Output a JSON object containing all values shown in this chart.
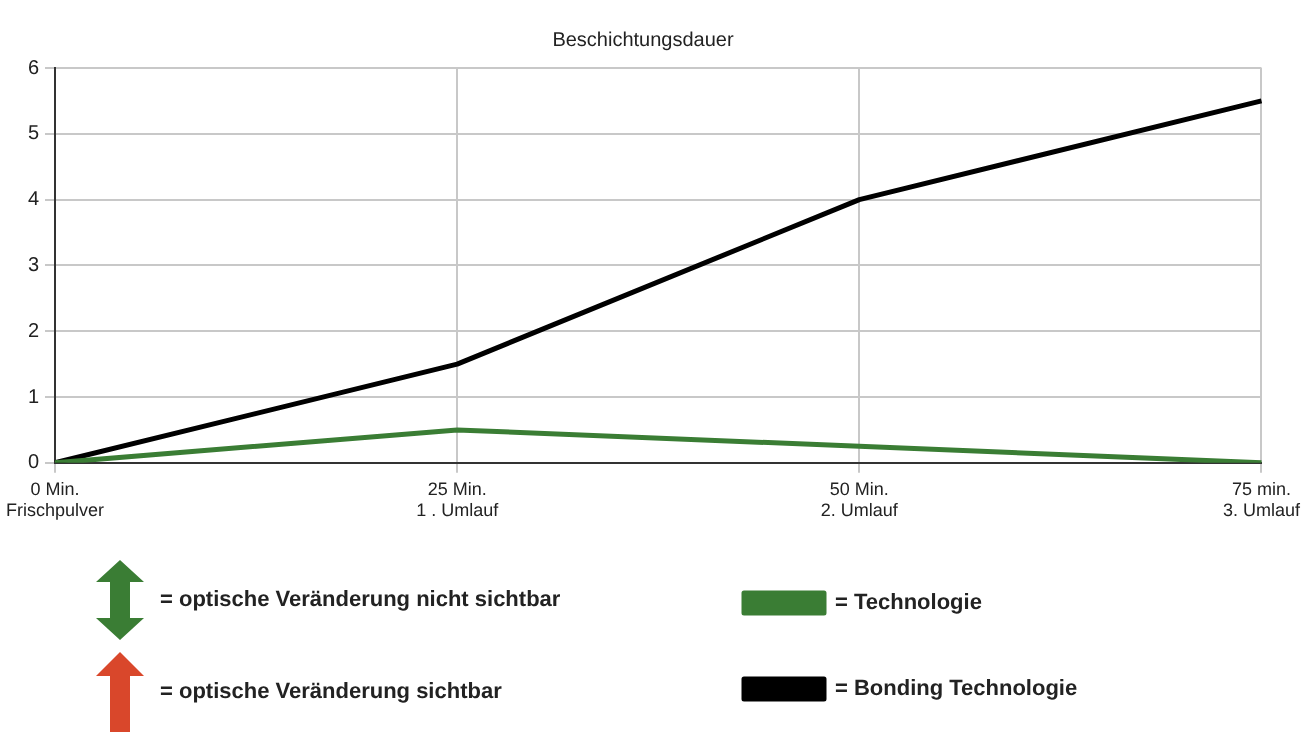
{
  "chart_data": {
    "type": "line",
    "title": "Beschichtungsdauer",
    "categories": [
      "0 Min.\nFrischpulver",
      "25 Min.\n1 . Umlauf",
      "50 Min.\n2. Umlauf",
      "75 min.\n3. Umlauf"
    ],
    "series": [
      {
        "name": "= Technologie",
        "color": "#3a7d34",
        "values": [
          0,
          0.5,
          0.25,
          0
        ]
      },
      {
        "name": "= Bonding Technologie",
        "color": "#000000",
        "values": [
          0,
          1.5,
          4,
          5.5
        ]
      }
    ],
    "ylim": [
      0,
      6
    ],
    "yticks": [
      0,
      1,
      2,
      3,
      4,
      5,
      6
    ],
    "grid": true,
    "legend": "bottom",
    "marker": "none",
    "line_style": "solid",
    "annotations": [
      "= optische Veränderung nicht sichtbar",
      "= optische Veränderung sichtbar"
    ]
  }
}
